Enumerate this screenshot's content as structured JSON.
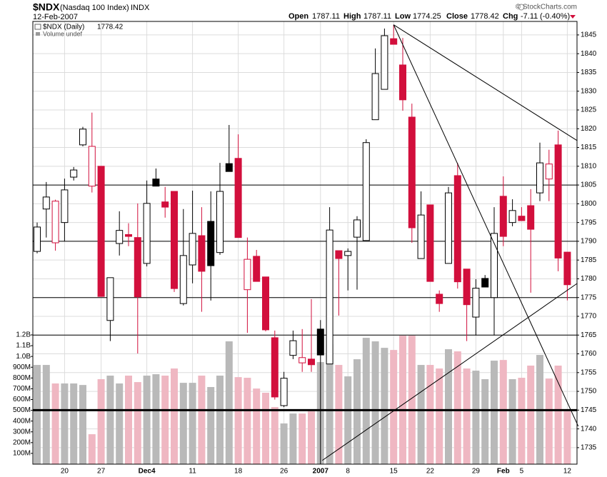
{
  "chart_data": {
    "type": "candlestick",
    "symbol": "$NDX",
    "description": "(Nasdaq 100 Index)",
    "exchange": "INDX",
    "date": "12-Feb-2007",
    "copyright": "© StockCharts.com",
    "quote_labels": [
      "Open",
      "High",
      "Low",
      "Close",
      "Chg"
    ],
    "change": -7.11,
    "change_pct": "(-0.40%)",
    "legend_label": "$NDX (Daily)",
    "volume_label": "Volume undef",
    "categories": [
      null,
      null,
      null,
      "20",
      null,
      null,
      null,
      "27",
      null,
      null,
      null,
      null,
      "Dec4",
      null,
      null,
      null,
      null,
      "11",
      null,
      null,
      null,
      null,
      "18",
      null,
      null,
      null,
      null,
      "26",
      null,
      null,
      null,
      "2007",
      null,
      null,
      "8",
      null,
      null,
      null,
      null,
      "15",
      null,
      null,
      null,
      "22",
      null,
      null,
      null,
      null,
      "29",
      null,
      null,
      "Feb",
      null,
      "5",
      null,
      null,
      null,
      null,
      "12"
    ],
    "open": [
      1787.3,
      1798.6,
      1789.6,
      1795,
      1807.1,
      1815.7,
      1804.7,
      1810,
      1768.9,
      1789.4,
      1791.8,
      1791,
      1784.1,
      1806.6,
      1800.5,
      1803.3,
      1773.4,
      1783.7,
      1791.5,
      1795.3,
      1787,
      1810.7,
      1812.1,
      1777.1,
      1786,
      1780.5,
      1764.3,
      1746.2,
      1759.6,
      1757.6,
      1758.6,
      1766.6,
      1757.3,
      1787.5,
      1786.2,
      1791.1,
      1790.2,
      1822.4,
      1830.5,
      1844,
      1837,
      1823.1,
      1785.4,
      1799.7,
      1775.9,
      1784.1,
      1807.5,
      1782.6,
      1769.8,
      1780.1,
      1775,
      1802,
      1795,
      1796.7,
      1799.5,
      1802.9,
      1806.6,
      1815.7,
      1787.11
    ],
    "high": [
      1795,
      1805.8,
      1801.1,
      1806.7,
      1809.8,
      1820.5,
      1824.3,
      1810,
      1780.3,
      1798,
      1794.8,
      1800.1,
      1806.2,
      1809.4,
      1804.5,
      1803.3,
      1798.6,
      1803.5,
      1799.1,
      1803.3,
      1810.9,
      1821,
      1818.5,
      1791,
      1787.7,
      1780.5,
      1766.2,
      1755.2,
      1766.2,
      1766.6,
      1774.6,
      1769,
      1799.1,
      1787.5,
      1788.1,
      1796.7,
      1817.2,
      1841.4,
      1846.7,
      1847.7,
      1844.2,
      1826.7,
      1803.3,
      1799.7,
      1776.9,
      1804.5,
      1810.9,
      1782.6,
      1779.9,
      1781,
      1799.1,
      1807.3,
      1801.2,
      1799.1,
      1803.9,
      1816.3,
      1814.4,
      1819.5,
      1787.11
    ],
    "low": [
      1786.8,
      1791,
      1787.5,
      1790,
      1806.2,
      1815.3,
      1803,
      1775.3,
      1763.4,
      1786.2,
      1788.7,
      1760.1,
      1783.3,
      1804.7,
      1796.3,
      1776.5,
      1772.9,
      1778.8,
      1771.2,
      1774.2,
      1786.4,
      1808.6,
      1791,
      1765.6,
      1779.3,
      1766,
      1747.8,
      1745.8,
      1758.6,
      1755.2,
      1755.2,
      1730.6,
      1757.3,
      1770.2,
      1776.9,
      1777.1,
      1790.2,
      1822.4,
      1830.5,
      1842.5,
      1824.8,
      1789.6,
      1785.4,
      1779.3,
      1771.2,
      1784.1,
      1777.4,
      1763.4,
      1764.9,
      1777.8,
      1764.9,
      1788.7,
      1794,
      1795.5,
      1776.3,
      1800.7,
      1800.7,
      1782,
      1774.25
    ],
    "close": [
      1793.8,
      1801.8,
      1800.7,
      1803.7,
      1809,
      1819.9,
      1815.3,
      1775.3,
      1780.3,
      1792.9,
      1791.3,
      1775.2,
      1800.1,
      1804.7,
      1799.1,
      1777.4,
      1786.2,
      1792.1,
      1782,
      1783.5,
      1803.3,
      1808.6,
      1791,
      1785.2,
      1779.3,
      1766.4,
      1748.5,
      1753.5,
      1763.5,
      1759,
      1757.1,
      1759.7,
      1793,
      1785.4,
      1787.3,
      1795.7,
      1816.3,
      1834.7,
      1844.8,
      1842.5,
      1827.7,
      1793.6,
      1797,
      1779.3,
      1773.4,
      1802.9,
      1779.2,
      1773.1,
      1777.5,
      1777.8,
      1792.1,
      1791.3,
      1798.2,
      1795.5,
      1793.2,
      1810.9,
      1810.6,
      1785.53,
      1778.42
    ],
    "volume": [
      921,
      921,
      749,
      749,
      749,
      735,
      278,
      789,
      822,
      749,
      822,
      762,
      822,
      835,
      822,
      888,
      755,
      755,
      822,
      716,
      822,
      1140,
      808,
      802,
      702,
      663,
      530,
      378,
      470,
      470,
      490,
      948,
      1113,
      921,
      815,
      974,
      1173,
      1140,
      1080,
      1060,
      1193,
      1193,
      921,
      921,
      888,
      1067,
      1047,
      888,
      868,
      789,
      961,
      967,
      789,
      802,
      915,
      1014,
      795,
      915,
      490
    ],
    "ylim": [
      1730.6,
      1848.6
    ],
    "yticks": [
      1735,
      1740,
      1745,
      1750,
      1755,
      1760,
      1765,
      1770,
      1775,
      1780,
      1785,
      1790,
      1795,
      1800,
      1805,
      1810,
      1815,
      1820,
      1825,
      1830,
      1835,
      1840,
      1845
    ],
    "volume_lim": [
      0,
      1200
    ],
    "volume_ticks": [
      {
        "value": 100,
        "label": "100M"
      },
      {
        "value": 200,
        "label": "200M"
      },
      {
        "value": 300,
        "label": "300M"
      },
      {
        "value": 400,
        "label": "400M"
      },
      {
        "value": 500,
        "label": "500M"
      },
      {
        "value": 600,
        "label": "600M"
      },
      {
        "value": 700,
        "label": "700M"
      },
      {
        "value": 800,
        "label": "800M"
      },
      {
        "value": 900,
        "label": "900M"
      },
      {
        "value": 1000,
        "label": "1.0B"
      },
      {
        "value": 1100,
        "label": "1.1B"
      },
      {
        "value": 1200,
        "label": "1.2B"
      }
    ],
    "up_color": "#000000",
    "down_color": "#d20f3c",
    "up_volume_color": "#b9b9b9",
    "down_volume_color": "#efb7c2",
    "grid": true,
    "levels": [
      1805,
      1790,
      1775,
      1765,
      1745
    ],
    "level_widths": [
      1,
      1,
      1,
      1,
      3
    ],
    "trend_lines": [
      {
        "x": [
          39,
          59.1
        ],
        "y": [
          1847.7,
          1816.8
        ]
      },
      {
        "x": [
          39,
          59.2
        ],
        "y": [
          1847.7,
          1740.7
        ]
      },
      {
        "x": [
          31.2,
          59.1
        ],
        "y": [
          1731.6,
          1778.8
        ]
      }
    ]
  }
}
